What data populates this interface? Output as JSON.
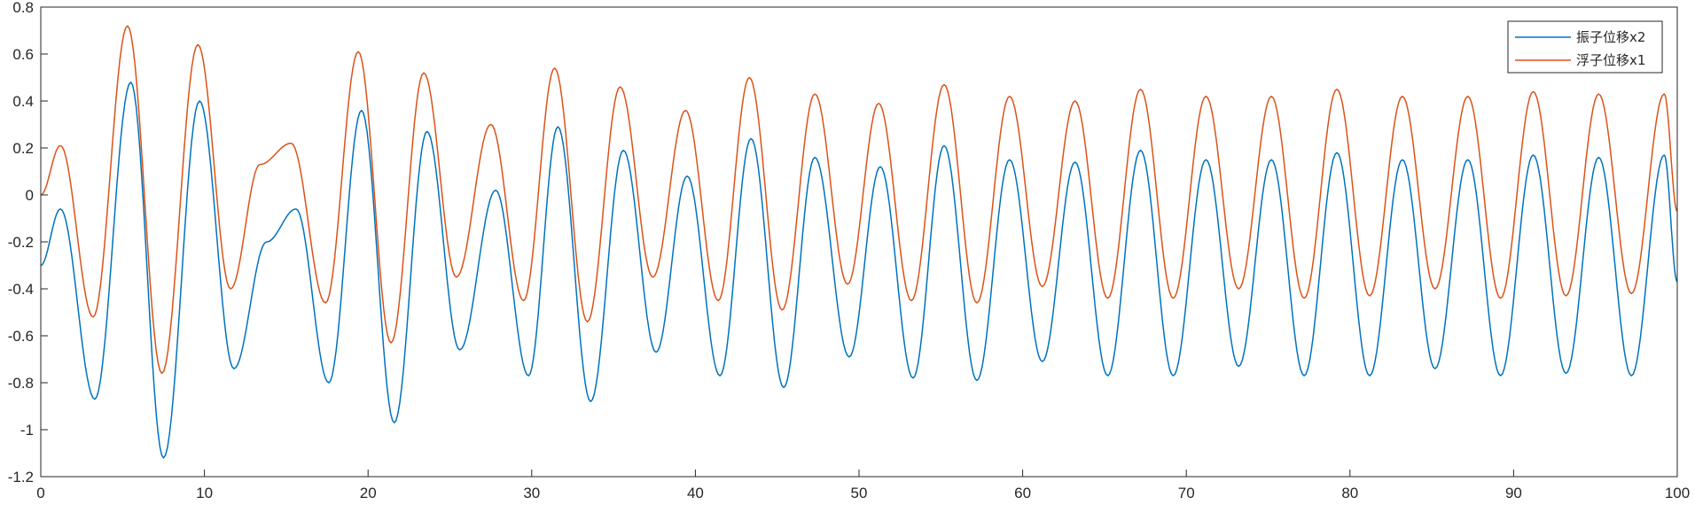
{
  "chart_data": {
    "type": "line",
    "title": "",
    "xlabel": "",
    "ylabel": "",
    "xlim": [
      0,
      100
    ],
    "ylim": [
      -1.2,
      0.8
    ],
    "grid": false,
    "legend_position": "top-right",
    "x_ticks": [
      0,
      10,
      20,
      30,
      40,
      50,
      60,
      70,
      80,
      90,
      100
    ],
    "y_ticks": [
      -1.2,
      -1,
      -0.8,
      -0.6,
      -0.4,
      -0.2,
      0,
      0.2,
      0.4,
      0.6,
      0.8
    ],
    "x_tick_labels": [
      "0",
      "10",
      "20",
      "30",
      "40",
      "50",
      "60",
      "70",
      "80",
      "90",
      "100"
    ],
    "y_tick_labels": [
      "-1.2",
      "-1",
      "-0.8",
      "-0.6",
      "-0.4",
      "-0.2",
      "0",
      "0.2",
      "0.4",
      "0.6",
      "0.8"
    ],
    "series": [
      {
        "name": "振子位移x2",
        "color": "#0072BD",
        "points": [
          [
            0,
            -0.3
          ],
          [
            1.2,
            -0.06
          ],
          [
            3.3,
            -0.87
          ],
          [
            5.5,
            0.48
          ],
          [
            7.5,
            -1.12
          ],
          [
            9.7,
            0.4
          ],
          [
            11.8,
            -0.74
          ],
          [
            13.8,
            -0.2
          ],
          [
            15.6,
            -0.06
          ],
          [
            17.6,
            -0.8
          ],
          [
            19.6,
            0.36
          ],
          [
            21.6,
            -0.97
          ],
          [
            23.6,
            0.27
          ],
          [
            25.6,
            -0.66
          ],
          [
            27.8,
            0.02
          ],
          [
            29.8,
            -0.77
          ],
          [
            31.6,
            0.29
          ],
          [
            33.6,
            -0.88
          ],
          [
            35.6,
            0.19
          ],
          [
            37.6,
            -0.67
          ],
          [
            39.5,
            0.08
          ],
          [
            41.5,
            -0.77
          ],
          [
            43.4,
            0.24
          ],
          [
            45.4,
            -0.82
          ],
          [
            47.3,
            0.16
          ],
          [
            49.4,
            -0.69
          ],
          [
            51.3,
            0.12
          ],
          [
            53.3,
            -0.78
          ],
          [
            55.2,
            0.21
          ],
          [
            57.2,
            -0.79
          ],
          [
            59.2,
            0.15
          ],
          [
            61.2,
            -0.71
          ],
          [
            63.2,
            0.14
          ],
          [
            65.2,
            -0.77
          ],
          [
            67.2,
            0.19
          ],
          [
            69.2,
            -0.77
          ],
          [
            71.2,
            0.15
          ],
          [
            73.2,
            -0.73
          ],
          [
            75.2,
            0.15
          ],
          [
            77.2,
            -0.77
          ],
          [
            79.2,
            0.18
          ],
          [
            81.2,
            -0.77
          ],
          [
            83.2,
            0.15
          ],
          [
            85.2,
            -0.74
          ],
          [
            87.2,
            0.15
          ],
          [
            89.2,
            -0.77
          ],
          [
            91.2,
            0.17
          ],
          [
            93.2,
            -0.76
          ],
          [
            95.2,
            0.16
          ],
          [
            97.2,
            -0.77
          ],
          [
            99.2,
            0.17
          ],
          [
            100,
            -0.37
          ]
        ]
      },
      {
        "name": "浮子位移x1",
        "color": "#D95319",
        "points": [
          [
            0,
            0.0
          ],
          [
            1.2,
            0.21
          ],
          [
            3.2,
            -0.52
          ],
          [
            5.3,
            0.72
          ],
          [
            7.4,
            -0.76
          ],
          [
            9.6,
            0.64
          ],
          [
            11.6,
            -0.4
          ],
          [
            13.4,
            0.13
          ],
          [
            15.3,
            0.22
          ],
          [
            17.4,
            -0.46
          ],
          [
            19.4,
            0.61
          ],
          [
            21.4,
            -0.63
          ],
          [
            23.4,
            0.52
          ],
          [
            25.4,
            -0.35
          ],
          [
            27.5,
            0.3
          ],
          [
            29.5,
            -0.45
          ],
          [
            31.4,
            0.54
          ],
          [
            33.4,
            -0.54
          ],
          [
            35.4,
            0.46
          ],
          [
            37.4,
            -0.35
          ],
          [
            39.4,
            0.36
          ],
          [
            41.4,
            -0.45
          ],
          [
            43.3,
            0.5
          ],
          [
            45.3,
            -0.49
          ],
          [
            47.3,
            0.43
          ],
          [
            49.3,
            -0.38
          ],
          [
            51.2,
            0.39
          ],
          [
            53.2,
            -0.45
          ],
          [
            55.2,
            0.47
          ],
          [
            57.2,
            -0.46
          ],
          [
            59.2,
            0.42
          ],
          [
            61.2,
            -0.39
          ],
          [
            63.2,
            0.4
          ],
          [
            65.2,
            -0.44
          ],
          [
            67.2,
            0.45
          ],
          [
            69.2,
            -0.44
          ],
          [
            71.2,
            0.42
          ],
          [
            73.2,
            -0.4
          ],
          [
            75.2,
            0.42
          ],
          [
            77.2,
            -0.44
          ],
          [
            79.2,
            0.45
          ],
          [
            81.2,
            -0.43
          ],
          [
            83.2,
            0.42
          ],
          [
            85.2,
            -0.4
          ],
          [
            87.2,
            0.42
          ],
          [
            89.2,
            -0.44
          ],
          [
            91.2,
            0.44
          ],
          [
            93.2,
            -0.43
          ],
          [
            95.2,
            0.43
          ],
          [
            97.2,
            -0.42
          ],
          [
            99.2,
            0.43
          ],
          [
            100,
            -0.07
          ]
        ]
      }
    ]
  }
}
